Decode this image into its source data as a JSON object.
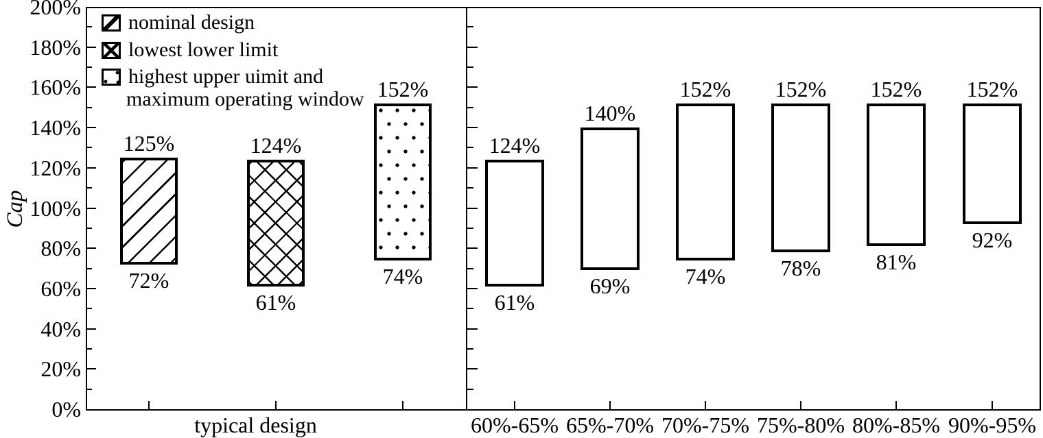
{
  "chart_data": {
    "type": "bar",
    "variant": "floating-range-bars",
    "title": "",
    "ylabel": "Cap",
    "ylim": [
      0,
      200
    ],
    "y_major_tick_step": 20,
    "y_minor_tick_step": 10,
    "y_tick_labels": [
      "0%",
      "20%",
      "40%",
      "60%",
      "80%",
      "100%",
      "120%",
      "140%",
      "160%",
      "180%",
      "200%"
    ],
    "grid": "off",
    "legend": {
      "position": "top-left",
      "items": [
        {
          "label": "nominal design",
          "pattern": "diagonal-hatch"
        },
        {
          "label": "lowest lower limit",
          "pattern": "cross-hatch"
        },
        {
          "label": "highest upper uimit and",
          "label_line2": "maximum operating window",
          "pattern": "sparse-dots"
        }
      ]
    },
    "panels": [
      {
        "name": "typical-design-panel",
        "xlabel": "typical design",
        "bars": [
          {
            "series": "nominal design",
            "low": 72,
            "high": 125,
            "low_label": "72%",
            "high_label": "125%",
            "pattern": "diagonal-hatch"
          },
          {
            "series": "lowest lower limit",
            "low": 61,
            "high": 124,
            "low_label": "61%",
            "high_label": "124%",
            "pattern": "cross-hatch"
          },
          {
            "series": "highest upper uimit and maximum operating window",
            "low": 74,
            "high": 152,
            "low_label": "74%",
            "high_label": "152%",
            "pattern": "sparse-dots"
          }
        ]
      },
      {
        "name": "range-panel",
        "xlabel": "",
        "bars": [
          {
            "category": "60%-65%",
            "low": 61,
            "high": 124,
            "low_label": "61%",
            "high_label": "124%",
            "pattern": "plain"
          },
          {
            "category": "65%-70%",
            "low": 69,
            "high": 140,
            "low_label": "69%",
            "high_label": "140%",
            "pattern": "plain"
          },
          {
            "category": "70%-75%",
            "low": 74,
            "high": 152,
            "low_label": "74%",
            "high_label": "152%",
            "pattern": "plain"
          },
          {
            "category": "75%-80%",
            "low": 78,
            "high": 152,
            "low_label": "78%",
            "high_label": "152%",
            "pattern": "plain"
          },
          {
            "category": "80%-85%",
            "low": 81,
            "high": 152,
            "low_label": "81%",
            "high_label": "152%",
            "pattern": "plain"
          },
          {
            "category": "90%-95%",
            "low": 92,
            "high": 152,
            "low_label": "92%",
            "high_label": "152%",
            "pattern": "plain"
          }
        ]
      }
    ],
    "colors": {
      "ink": "#000000",
      "background": "#ffffff"
    }
  }
}
